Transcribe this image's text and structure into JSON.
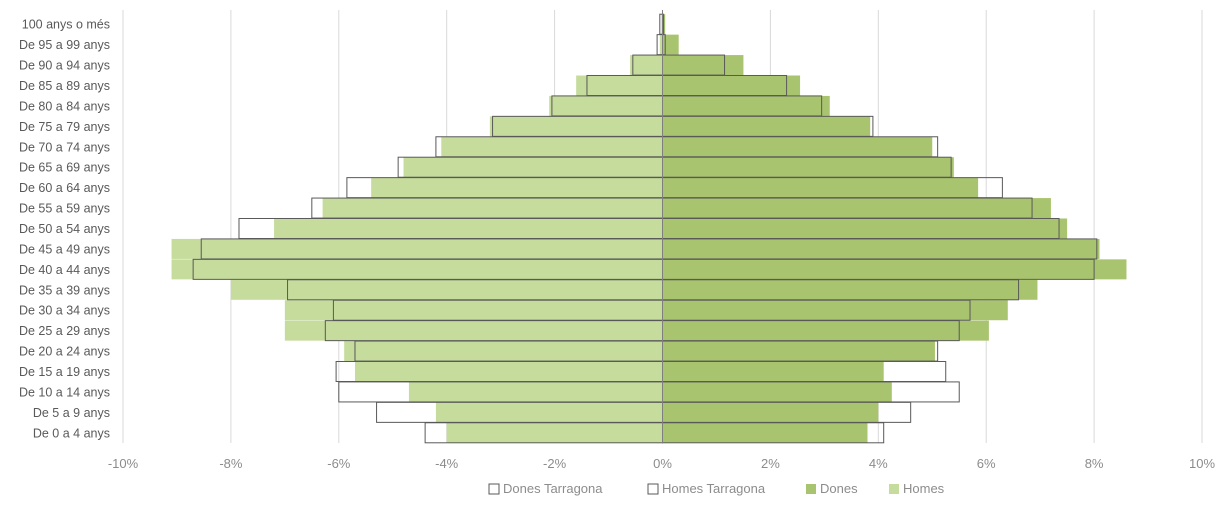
{
  "chart_data": {
    "type": "bar",
    "orientation": "horizontal",
    "categories": [
      "100 anys o més",
      "De 95 a 99 anys",
      "De 90 a 94 anys",
      "De 85 a 89 anys",
      "De 80 a 84 anys",
      "De 75 a 79 anys",
      "De 70 a 74 anys",
      "De 65 a 69 anys",
      "De 60 a 64 anys",
      "De 55 a 59 anys",
      "De 50 a 54 anys",
      "De 45 a 49 anys",
      "De 40 a 44 anys",
      "De 35 a 39 anys",
      "De 30 a 34 anys",
      "De 25 a 29 anys",
      "De 20 a 24 anys",
      "De 15 a 19 anys",
      "De 10 a 14 anys",
      "De 5 a 9 anys",
      "De 0 a 4 anys"
    ],
    "series": [
      {
        "name": "Homes",
        "color": "#c5dc9c",
        "style": "fill",
        "values": [
          -0.02,
          -0.05,
          -0.6,
          -1.6,
          -2.1,
          -3.2,
          -4.1,
          -4.8,
          -5.4,
          -6.3,
          -7.2,
          -9.1,
          -9.1,
          -8.0,
          -7.0,
          -7.0,
          -5.9,
          -5.7,
          -4.7,
          -4.2,
          -4.0
        ]
      },
      {
        "name": "Dones",
        "color": "#a9c46f",
        "style": "fill",
        "values": [
          0.05,
          0.3,
          1.5,
          2.55,
          3.1,
          3.85,
          5.0,
          5.4,
          5.85,
          7.2,
          7.5,
          8.1,
          8.6,
          6.95,
          6.4,
          6.05,
          5.05,
          4.1,
          4.25,
          4.0,
          3.8
        ]
      },
      {
        "name": "Homes Tarragona",
        "color": "#595959",
        "style": "outline",
        "values": [
          -0.05,
          -0.1,
          -0.55,
          -1.4,
          -2.05,
          -3.15,
          -4.2,
          -4.9,
          -5.85,
          -6.5,
          -7.85,
          -8.55,
          -8.7,
          -6.95,
          -6.1,
          -6.25,
          -5.7,
          -6.05,
          -6.0,
          -5.3,
          -4.4
        ]
      },
      {
        "name": "Dones Tarragona",
        "color": "#595959",
        "style": "outline",
        "values": [
          0.02,
          0.05,
          1.15,
          2.3,
          2.95,
          3.9,
          5.1,
          5.35,
          6.3,
          6.85,
          7.35,
          8.05,
          8.0,
          6.6,
          5.7,
          5.5,
          5.1,
          5.25,
          5.5,
          4.6,
          4.1
        ]
      }
    ],
    "xlim": [
      -10,
      10
    ],
    "xticks": [
      "-10%",
      "-8%",
      "-6%",
      "-4%",
      "-2%",
      "0%",
      "2%",
      "4%",
      "6%",
      "8%",
      "10%"
    ],
    "legend": {
      "position": "bottom",
      "entries": [
        {
          "label": "Dones Tarragona",
          "color": "#ffffff"
        },
        {
          "label": "Homes Tarragona",
          "color": "#ffffff"
        },
        {
          "label": "Dones",
          "color": "#a9c46f"
        },
        {
          "label": "Homes",
          "color": "#c5dc9c"
        }
      ]
    },
    "grid": true,
    "title": "",
    "xlabel": "",
    "ylabel": ""
  }
}
